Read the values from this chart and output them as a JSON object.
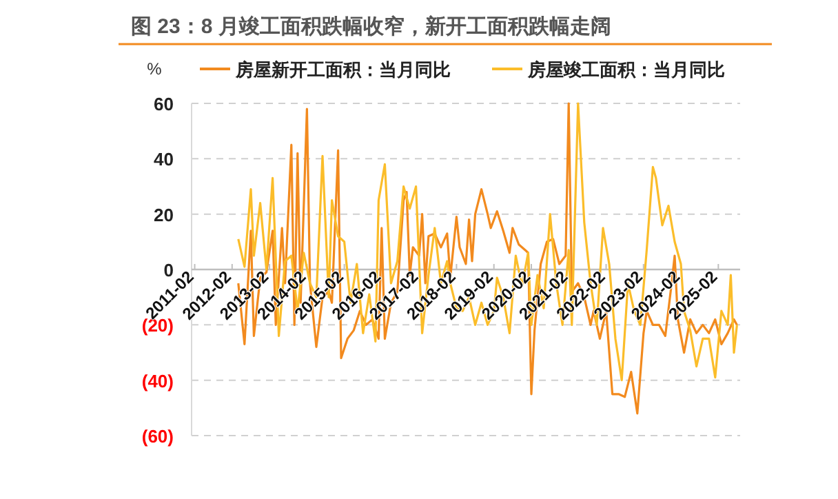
{
  "chart_data": {
    "type": "line",
    "title": "图 23：8 月竣工面积跌幅收窄，新开工面积跌幅走阔",
    "ylabel": "%",
    "legend": "top",
    "grid": "y",
    "xlim": [
      "2011-01",
      "2025-09"
    ],
    "xticks": [
      {
        "value": "2011-02",
        "label": "2011-02"
      },
      {
        "value": "2012-02",
        "label": "2012-02"
      },
      {
        "value": "2013-02",
        "label": "2013-02"
      },
      {
        "value": "2014-02",
        "label": "2014-02"
      },
      {
        "value": "2015-02",
        "label": "2015-02"
      },
      {
        "value": "2016-02",
        "label": "2016-02"
      },
      {
        "value": "2017-02",
        "label": "2017-02"
      },
      {
        "value": "2018-02",
        "label": "2018-02"
      },
      {
        "value": "2019-02",
        "label": "2019-02"
      },
      {
        "value": "2020-02",
        "label": "2020-02"
      },
      {
        "value": "2021-02",
        "label": "2021-02"
      },
      {
        "value": "2022-02",
        "label": "2022-02"
      },
      {
        "value": "2023-02",
        "label": "2023-02"
      },
      {
        "value": "2024-02",
        "label": "2024-02"
      },
      {
        "value": "2025-02",
        "label": "2025-02"
      }
    ],
    "ylim": [
      -60,
      60
    ],
    "yticks": [
      {
        "value": -60,
        "label": "(60)"
      },
      {
        "value": -40,
        "label": "(40)"
      },
      {
        "value": -20,
        "label": "(20)"
      },
      0,
      20,
      40,
      60
    ],
    "series": [
      {
        "name": "房屋新开工面积：当月同比",
        "color": "#f28a1e",
        "x": [
          "2012-04",
          "2012-06",
          "2012-08",
          "2012-09",
          "2012-11",
          "2013-01",
          "2013-03",
          "2013-04",
          "2013-06",
          "2013-07",
          "2013-09",
          "2013-10",
          "2013-11",
          "2013-12",
          "2014-02",
          "2014-03",
          "2014-05",
          "2014-07",
          "2014-09",
          "2014-10",
          "2014-12",
          "2015-01",
          "2015-03",
          "2015-05",
          "2015-07",
          "2015-09",
          "2015-11",
          "2016-01",
          "2016-02",
          "2016-03",
          "2016-05",
          "2016-07",
          "2016-09",
          "2016-10",
          "2016-11",
          "2016-12",
          "2017-02",
          "2017-03",
          "2017-04",
          "2017-05",
          "2017-07",
          "2017-09",
          "2017-11",
          "2017-12",
          "2018-02",
          "2018-03",
          "2018-05",
          "2018-06",
          "2018-07",
          "2018-08",
          "2018-10",
          "2018-12",
          "2019-01",
          "2019-03",
          "2019-05",
          "2019-07",
          "2019-08",
          "2019-10",
          "2019-12",
          "2020-01",
          "2020-02",
          "2020-03",
          "2020-05",
          "2020-07",
          "2020-09",
          "2020-11",
          "2021-01",
          "2021-02",
          "2021-03",
          "2021-05",
          "2021-07",
          "2021-09",
          "2021-10",
          "2021-12",
          "2022-02",
          "2022-04",
          "2022-06",
          "2022-08",
          "2022-10",
          "2022-12",
          "2023-02",
          "2023-03",
          "2023-05",
          "2023-07",
          "2023-09",
          "2023-11",
          "2023-12",
          "2024-01",
          "2024-03",
          "2024-05",
          "2024-07",
          "2024-09",
          "2024-11",
          "2025-01",
          "2025-03",
          "2025-05",
          "2025-07",
          "2025-08"
        ],
        "values": [
          -5,
          -27,
          14,
          -24,
          -3,
          -1,
          14,
          -20,
          15,
          -5,
          45,
          -20,
          42,
          -12,
          58,
          -5,
          -28,
          -10,
          -8,
          -12,
          43,
          -32,
          -25,
          -22,
          -15,
          -20,
          -18,
          -25,
          15,
          -25,
          -12,
          -8,
          25,
          28,
          -2,
          8,
          5,
          20,
          -5,
          12,
          13,
          8,
          13,
          -3,
          19,
          8,
          2,
          18,
          3,
          20,
          29,
          20,
          15,
          21,
          14,
          6,
          15,
          9,
          7,
          6,
          -45,
          -22,
          2,
          10,
          11,
          2,
          5,
          60,
          -8,
          -5,
          -10,
          -20,
          -15,
          -25,
          -15,
          -45,
          -45,
          -46,
          -37,
          -52,
          -23,
          -15,
          -20,
          -20,
          -24,
          -5,
          5,
          -18,
          -30,
          -18,
          -23,
          -20,
          -23,
          -18,
          -27,
          -23,
          -18,
          -20
        ]
      },
      {
        "name": "房屋竣工面积：当月同比",
        "color": "#fbbd2a",
        "x": [
          "2012-04",
          "2012-06",
          "2012-08",
          "2012-09",
          "2012-11",
          "2013-01",
          "2013-03",
          "2013-05",
          "2013-07",
          "2013-09",
          "2013-11",
          "2014-01",
          "2014-03",
          "2014-05",
          "2014-07",
          "2014-09",
          "2014-10",
          "2014-12",
          "2015-02",
          "2015-04",
          "2015-06",
          "2015-08",
          "2015-10",
          "2015-12",
          "2016-01",
          "2016-03",
          "2016-05",
          "2016-07",
          "2016-09",
          "2016-11",
          "2017-01",
          "2017-03",
          "2017-05",
          "2017-07",
          "2017-09",
          "2017-11",
          "2017-12",
          "2018-02",
          "2018-04",
          "2018-06",
          "2018-08",
          "2018-10",
          "2018-12",
          "2019-02",
          "2019-03",
          "2019-05",
          "2019-07",
          "2019-09",
          "2019-11",
          "2020-01",
          "2020-02",
          "2020-04",
          "2020-06",
          "2020-08",
          "2020-10",
          "2020-12",
          "2021-02",
          "2021-03",
          "2021-05",
          "2021-07",
          "2021-09",
          "2021-11",
          "2022-01",
          "2022-03",
          "2022-05",
          "2022-07",
          "2022-09",
          "2022-11",
          "2023-01",
          "2023-03",
          "2023-05",
          "2023-06",
          "2023-08",
          "2023-10",
          "2023-12",
          "2024-02",
          "2024-03",
          "2024-05",
          "2024-07",
          "2024-09",
          "2024-11",
          "2025-01",
          "2025-03",
          "2025-05",
          "2025-06",
          "2025-07",
          "2025-08"
        ],
        "values": [
          11,
          1,
          29,
          5,
          24,
          0,
          33,
          -24,
          3,
          5,
          -15,
          6,
          -5,
          -10,
          41,
          -10,
          25,
          12,
          10,
          -12,
          2,
          -23,
          -9,
          -26,
          25,
          38,
          -5,
          3,
          30,
          22,
          30,
          -23,
          -2,
          15,
          -5,
          3,
          -5,
          -14,
          -15,
          -10,
          -20,
          -12,
          -20,
          -15,
          -3,
          -10,
          -23,
          5,
          -6,
          6,
          -20,
          -2,
          -14,
          20,
          -5,
          -20,
          7,
          -20,
          60,
          17,
          -5,
          -20,
          15,
          2,
          -25,
          -40,
          -5,
          -15,
          -20,
          7,
          37,
          33,
          16,
          23,
          10,
          2,
          -15,
          -22,
          -35,
          -25,
          -25,
          -39,
          -15,
          -20,
          -2,
          -30,
          -20
        ]
      }
    ]
  }
}
